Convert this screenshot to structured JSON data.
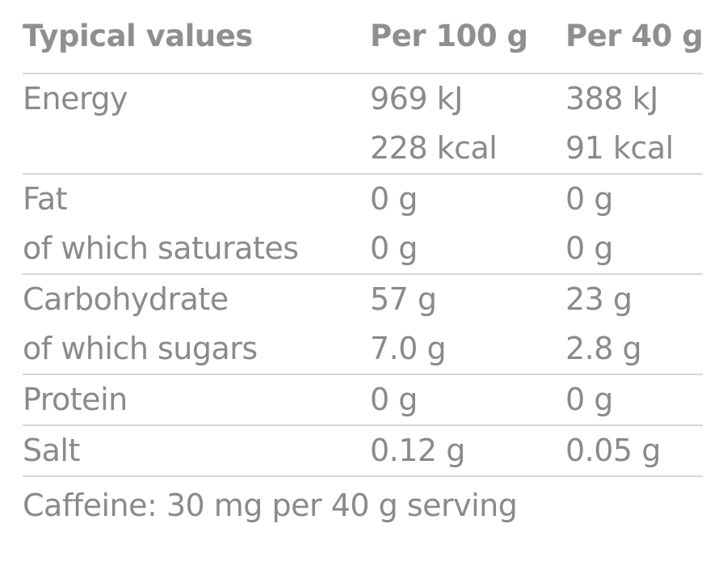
{
  "table": {
    "headers": {
      "name": "Typical values",
      "per_100": "Per 100 g",
      "per_40": "Per 40 g"
    },
    "groups": [
      {
        "rows": [
          {
            "name": "Energy",
            "per_100": "969 kJ",
            "per_40": "388 kJ"
          },
          {
            "name": "",
            "per_100": "228 kcal",
            "per_40": "91 kcal"
          }
        ]
      },
      {
        "rows": [
          {
            "name": "Fat",
            "per_100": "0 g",
            "per_40": "0 g"
          },
          {
            "name": "of which saturates",
            "per_100": "0 g",
            "per_40": "0 g"
          }
        ]
      },
      {
        "rows": [
          {
            "name": "Carbohydrate",
            "per_100": "57 g",
            "per_40": "23 g"
          },
          {
            "name": "of which sugars",
            "per_100": "7.0 g",
            "per_40": "2.8 g"
          }
        ]
      },
      {
        "rows": [
          {
            "name": "Protein",
            "per_100": "0 g",
            "per_40": "0 g"
          }
        ]
      },
      {
        "rows": [
          {
            "name": "Salt",
            "per_100": "0.12 g",
            "per_40": "0.05 g"
          }
        ]
      }
    ],
    "footnote": "Caffeine: 30 mg per 40 g serving"
  },
  "colors": {
    "text": "#8a8a8a",
    "divider": "#d6d6d6",
    "background": "#ffffff"
  }
}
